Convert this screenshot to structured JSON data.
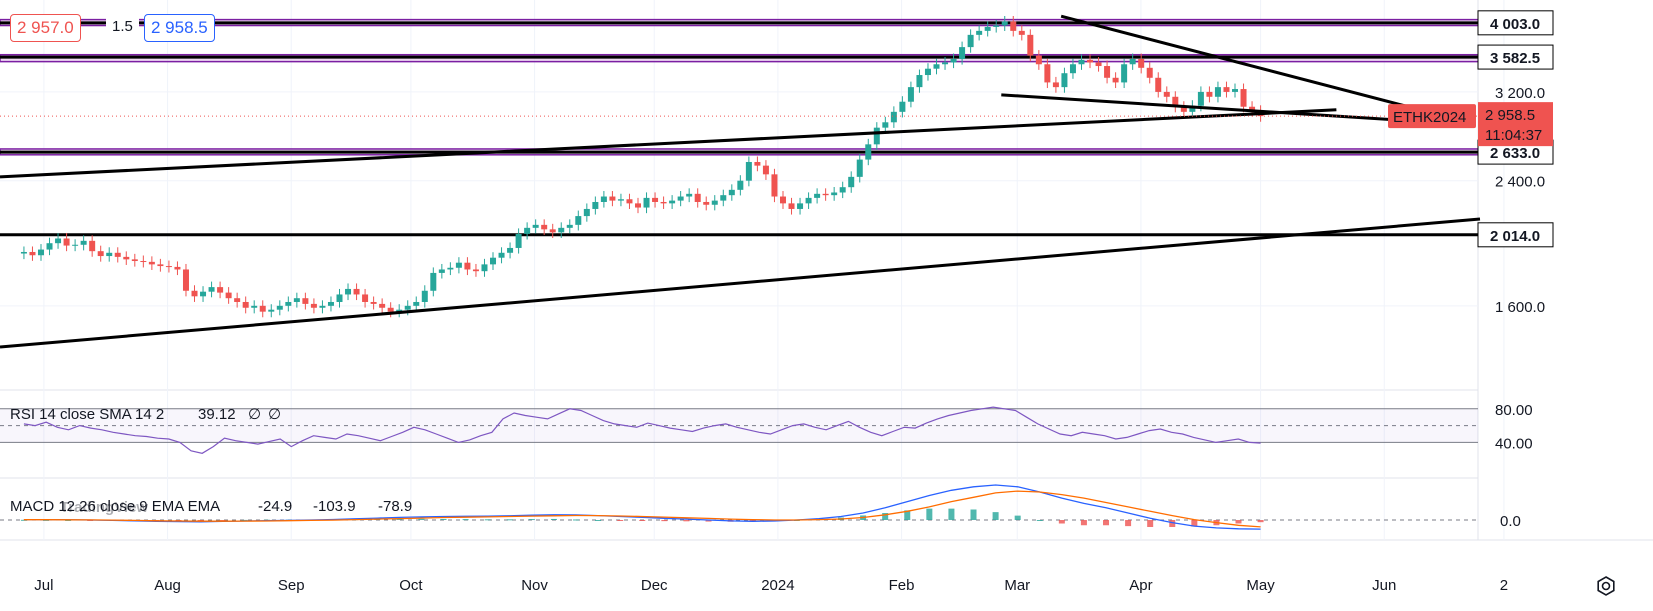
{
  "quote": {
    "bid": "2 957.0",
    "spread": "1.5",
    "ask": "2 958.5"
  },
  "symbol": "ETHK2024",
  "last_price": "2 958.5",
  "countdown": "11:04:37",
  "watermark": "TradingView",
  "price_labels": [
    "4 003.0",
    "3 582.5",
    "3 200.0",
    "2 633.0",
    "2 400.0",
    "2 014.0",
    "1 600.0"
  ],
  "time_labels": [
    "Jul",
    "Aug",
    "Sep",
    "Oct",
    "Nov",
    "Dec",
    "2024",
    "Feb",
    "Mar",
    "Apr",
    "May",
    "Jun",
    "2"
  ],
  "rsi": {
    "label": "RSI 14 close SMA 14 2",
    "value": "39.12",
    "extra1": "∅",
    "extra2": "∅",
    "levels": [
      "80.00",
      "40.00"
    ]
  },
  "macd": {
    "label": "MACD 12 26 close 9 EMA EMA",
    "hist": "-24.9",
    "macd": "-103.9",
    "signal": "-78.9",
    "zero": "0.0"
  },
  "colors": {
    "up": "#26a69a",
    "down": "#ef5350",
    "zone": "#e1bee7",
    "zone_border": "#7b1fa2",
    "rsi": "#7e57c2",
    "macd": "#2962ff",
    "signal": "#ff6d00",
    "label_red": "#ef5350"
  },
  "chart_data": {
    "type": "candlestick",
    "instrument": "ETHK2024",
    "x_range": [
      "2023-06-20",
      "2024-06-25"
    ],
    "y_range": [
      1250,
      4200
    ],
    "horizontal_levels": [
      4003.0,
      3582.5,
      2633.0,
      2014.0
    ],
    "closes": [
      1905,
      1885,
      1920,
      1960,
      1990,
      1945,
      1950,
      1975,
      1910,
      1880,
      1900,
      1875,
      1860,
      1850,
      1845,
      1830,
      1820,
      1815,
      1800,
      1680,
      1650,
      1675,
      1700,
      1670,
      1640,
      1620,
      1590,
      1600,
      1570,
      1580,
      1600,
      1620,
      1640,
      1610,
      1590,
      1600,
      1620,
      1660,
      1690,
      1660,
      1620,
      1610,
      1590,
      1570,
      1580,
      1600,
      1620,
      1680,
      1780,
      1800,
      1810,
      1840,
      1800,
      1790,
      1830,
      1870,
      1900,
      1930,
      2020,
      2060,
      2080,
      2050,
      2030,
      2060,
      2080,
      2140,
      2190,
      2240,
      2280,
      2250,
      2260,
      2230,
      2200,
      2270,
      2240,
      2230,
      2250,
      2280,
      2300,
      2240,
      2220,
      2250,
      2290,
      2330,
      2400,
      2550,
      2520,
      2450,
      2280,
      2230,
      2190,
      2230,
      2270,
      2300,
      2290,
      2310,
      2350,
      2430,
      2570,
      2700,
      2850,
      2900,
      3000,
      3100,
      3250,
      3380,
      3450,
      3500,
      3520,
      3560,
      3700,
      3850,
      3900,
      3950,
      3970,
      4020,
      3900,
      3850,
      3600,
      3500,
      3300,
      3250,
      3400,
      3500,
      3550,
      3520,
      3480,
      3350,
      3300,
      3500,
      3560,
      3460,
      3350,
      3200,
      3150,
      3050,
      3000,
      3060,
      3200,
      3150,
      3250,
      3200,
      3230,
      3050,
      3010,
      2958.5
    ],
    "sample_dates": [
      "2023-06-26",
      "2024-05-01"
    ],
    "trendlines": [
      {
        "start": [
          "2023-06-20",
          1400
        ],
        "end": [
          "2024-06-25",
          2120
        ]
      },
      {
        "start": [
          "2023-06-20",
          2430
        ],
        "end": [
          "2024-05-20",
          3020
        ]
      },
      {
        "start": [
          "2024-02-26",
          3170
        ],
        "end": [
          "2024-06-05",
          2920
        ]
      },
      {
        "start": [
          "2024-03-12",
          4090
        ],
        "end": [
          "2024-06-09",
          3030
        ]
      }
    ],
    "zones": [
      {
        "from": 3968,
        "to": 4045
      },
      {
        "from": 3530,
        "to": 3610
      },
      {
        "from": 2610,
        "to": 2660
      }
    ],
    "rsi": {
      "range": [
        0,
        100
      ],
      "levels": [
        80,
        40
      ],
      "last": 39.12,
      "values": [
        62,
        60,
        64,
        58,
        55,
        60,
        57,
        55,
        52,
        50,
        48,
        47,
        45,
        44,
        40,
        30,
        27,
        35,
        45,
        42,
        40,
        38,
        41,
        44,
        35,
        42,
        48,
        46,
        44,
        50,
        48,
        45,
        42,
        47,
        52,
        58,
        55,
        50,
        45,
        40,
        43,
        48,
        52,
        68,
        75,
        72,
        70,
        68,
        74,
        80,
        78,
        72,
        66,
        62,
        60,
        58,
        63,
        60,
        57,
        55,
        53,
        57,
        60,
        62,
        58,
        55,
        52,
        50,
        55,
        60,
        62,
        58,
        55,
        60,
        65,
        58,
        52,
        48,
        53,
        58,
        57,
        63,
        68,
        72,
        75,
        78,
        80,
        82,
        80,
        78,
        70,
        62,
        56,
        50,
        48,
        52,
        50,
        48,
        44,
        46,
        50,
        54,
        56,
        52,
        50,
        46,
        43,
        40,
        42,
        44,
        40,
        39.12
      ]
    },
    "macd": {
      "last_hist": -24.9,
      "last_macd": -103.9,
      "last_signal": -78.9,
      "macd_values": [
        5,
        4,
        2,
        0,
        -5,
        -10,
        -15,
        -18,
        -20,
        -16,
        -12,
        -8,
        -4,
        0,
        6,
        14,
        22,
        30,
        36,
        40,
        42,
        44,
        48,
        55,
        60,
        58,
        50,
        40,
        30,
        20,
        10,
        0,
        -10,
        -15,
        -12,
        0,
        15,
        40,
        80,
        140,
        210,
        280,
        340,
        380,
        400,
        380,
        320,
        250,
        190,
        140,
        80,
        20,
        -30,
        -70,
        -90,
        -100,
        -103.9
      ],
      "signal_values": [
        3,
        3,
        2,
        1,
        -1,
        -5,
        -9,
        -12,
        -14,
        -14,
        -13,
        -11,
        -8,
        -5,
        -1,
        4,
        10,
        16,
        22,
        28,
        32,
        36,
        40,
        44,
        48,
        52,
        50,
        46,
        40,
        33,
        25,
        18,
        10,
        4,
        0,
        0,
        4,
        12,
        28,
        60,
        100,
        150,
        210,
        260,
        310,
        330,
        320,
        290,
        250,
        200,
        150,
        100,
        50,
        5,
        -30,
        -60,
        -78.9
      ]
    }
  }
}
